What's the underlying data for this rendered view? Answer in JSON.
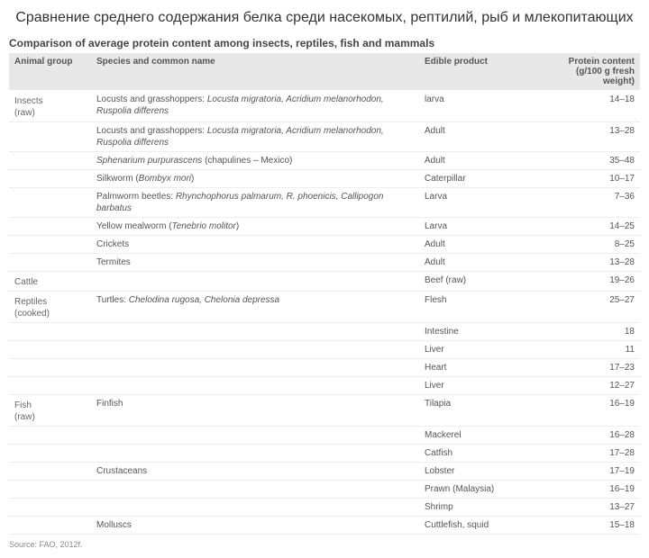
{
  "title": "Сравнение среднего содержания белка среди насекомых, рептилий, рыб и млекопитающих",
  "subtitle": "Comparison of average protein content among insects, reptiles, fish and mammals",
  "columns": {
    "group": "Animal group",
    "species": "Species and common name",
    "product": "Edible product",
    "protein": "Protein content (g/100 g fresh weight)"
  },
  "rows": [
    {
      "group": "Insects (raw)",
      "species": "Locusts and grasshoppers: <em>Locusta migratoria, Acridium melanorhodon, Ruspolia differens</em>",
      "product": "larva",
      "protein": "14–18"
    },
    {
      "group": "",
      "species": "Locusts and grasshoppers: <em>Locusta migratoria, Acridium melanorhodon, Ruspolia differens</em>",
      "product": "Adult",
      "protein": "13–28"
    },
    {
      "group": "",
      "species": "<em>Sphenarium purpurascens</em> (chapulines – Mexico)",
      "product": "Adult",
      "protein": "35–48"
    },
    {
      "group": "",
      "species": "Silkworm (<em>Bombyx mori</em>)",
      "product": "Caterpillar",
      "protein": "10–17"
    },
    {
      "group": "",
      "species": "Palmworm beetles: <em>Rhynchophorus palmarum, R. phoenicis, Callipogon barbatus</em>",
      "product": "Larva",
      "protein": "7–36"
    },
    {
      "group": "",
      "species": "Yellow mealworm (<em>Tenebrio molitor</em>)",
      "product": "Larva",
      "protein": "14–25"
    },
    {
      "group": "",
      "species": "Crickets",
      "product": "Adult",
      "protein": "8–25"
    },
    {
      "group": "",
      "species": "Termites",
      "product": "Adult",
      "protein": "13–28"
    },
    {
      "group": "Cattle",
      "species": "",
      "product": "Beef (raw)",
      "protein": "19–26"
    },
    {
      "group": "Reptiles (cooked)",
      "species": "Turtles: <em>Chelodina rugosa, Chelonia depressa</em>",
      "product": "Flesh",
      "protein": "25–27"
    },
    {
      "group": "",
      "species": "",
      "product": "Intestine",
      "protein": "18"
    },
    {
      "group": "",
      "species": "",
      "product": "Liver",
      "protein": "11"
    },
    {
      "group": "",
      "species": "",
      "product": "Heart",
      "protein": "17–23"
    },
    {
      "group": "",
      "species": "",
      "product": "Liver",
      "protein": "12–27"
    },
    {
      "group": "Fish (raw)",
      "species": "Finfish",
      "product": "Tilapia",
      "protein": "16–19"
    },
    {
      "group": "",
      "species": "",
      "product": "Mackerel",
      "protein": "16–28"
    },
    {
      "group": "",
      "species": "",
      "product": "Catfish",
      "protein": "17–28"
    },
    {
      "group": "",
      "species": "Crustaceans",
      "product": "Lobster",
      "protein": "17–19"
    },
    {
      "group": "",
      "species": "",
      "product": "Prawn (Malaysia)",
      "protein": "16–19"
    },
    {
      "group": "",
      "species": "",
      "product": "Shrimp",
      "protein": "13–27"
    },
    {
      "group": "",
      "species": "Molluscs",
      "product": "Cuttlefish, squid",
      "protein": "15–18"
    }
  ],
  "source": "Source: FAO, 2012f.",
  "styling": {
    "background_color": "#ffffff",
    "header_bg": "#e8e8e8",
    "text_color": "#555555",
    "title_fontsize": 16,
    "body_fontsize": 10,
    "border_color": "#eeeeee",
    "column_widths_pct": [
      13,
      52,
      20,
      15
    ]
  }
}
